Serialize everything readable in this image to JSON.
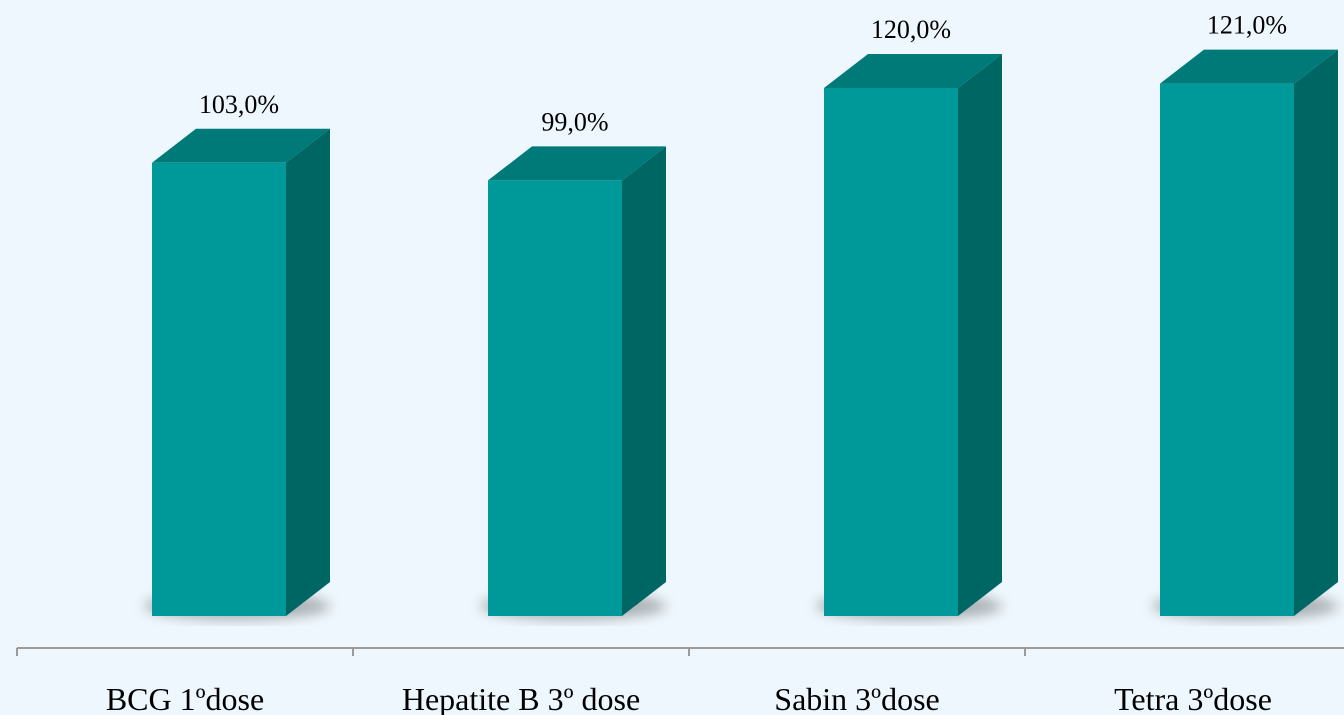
{
  "chart_data": {
    "type": "bar",
    "style": "3d",
    "categories": [
      "BCG 1ºdose",
      "Hepatite B 3º dose",
      "Sabin 3ºdose",
      "Tetra 3ºdose"
    ],
    "values": [
      103.0,
      99.0,
      120.0,
      121.0
    ],
    "data_labels": [
      "103,0%",
      "99,0%",
      "120,0%",
      "121,0%"
    ],
    "unit": "%",
    "title": "",
    "xlabel": "",
    "ylabel": "",
    "ylim": [
      0,
      125
    ],
    "grid": false,
    "legend": "none",
    "colors": {
      "background": "#eef7fd",
      "bar_front": "#009999",
      "bar_top": "#007a78",
      "bar_side": "#006663",
      "axis": "#9a9a9a",
      "text": "#000000"
    }
  }
}
